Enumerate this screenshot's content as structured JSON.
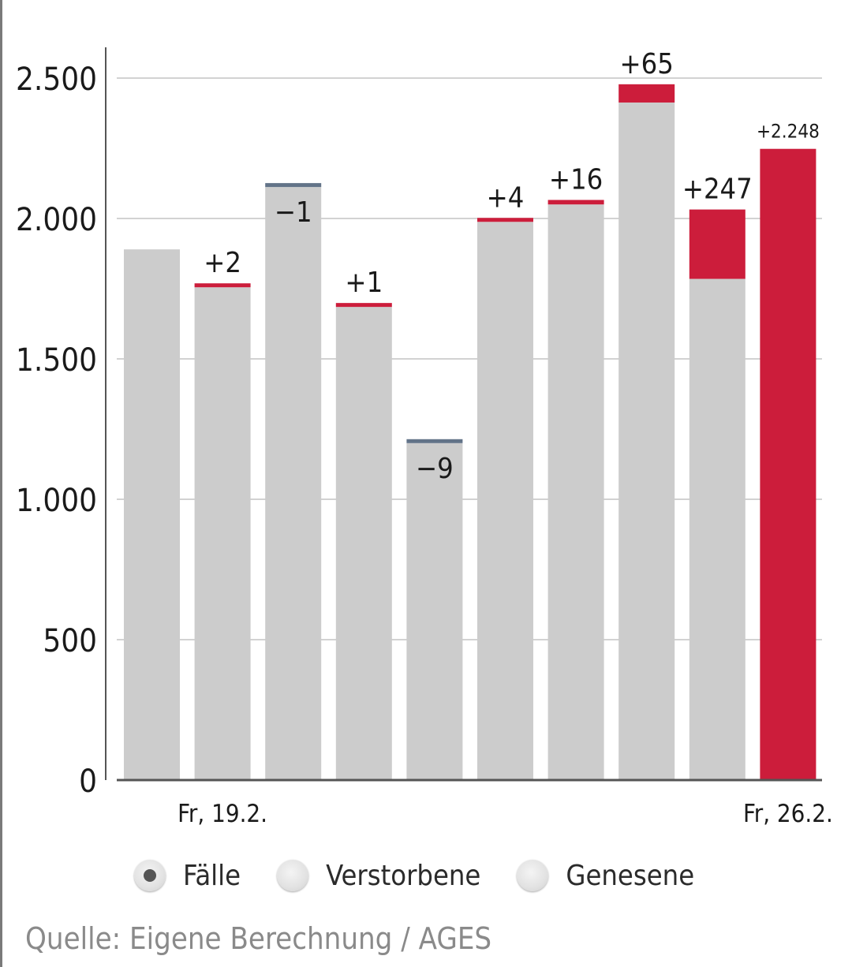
{
  "chart_data": {
    "type": "bar",
    "categories": [
      "",
      "Fr, 19.2.",
      "",
      "",
      "",
      "",
      "",
      "",
      "",
      "Fr, 26.2."
    ],
    "series": [
      {
        "values": [
          1890,
          1755,
          2112,
          1685,
          1200,
          1988,
          2050,
          2413,
          1785,
          0
        ]
      },
      {
        "values": [
          0,
          2,
          -1,
          1,
          -9,
          4,
          16,
          65,
          247,
          2248
        ]
      }
    ],
    "change_labels": [
      "",
      "+2",
      "−1",
      "+1",
      "−9",
      "+4",
      "+16",
      "+65",
      "+247",
      "+2.248"
    ],
    "ylim": [
      0,
      2500
    ],
    "yticks": [
      0,
      500,
      1000,
      1500,
      2000,
      2500
    ],
    "ytick_labels": [
      "0",
      "500",
      "1.000",
      "1.500",
      "2.000",
      "2.500"
    ],
    "grid": true,
    "colors": {
      "base": "#cccccc",
      "increase": "#cc1d3b",
      "decrease": "#627388",
      "grid": "#d2d2d2",
      "axis": "#555555",
      "text": "#1a1a1a"
    }
  },
  "legend": {
    "items": [
      {
        "label": "Fälle",
        "selected": true
      },
      {
        "label": "Verstorbene",
        "selected": false
      },
      {
        "label": "Genesene",
        "selected": false
      }
    ]
  },
  "source": "Quelle: Eigene Berechnung / AGES"
}
